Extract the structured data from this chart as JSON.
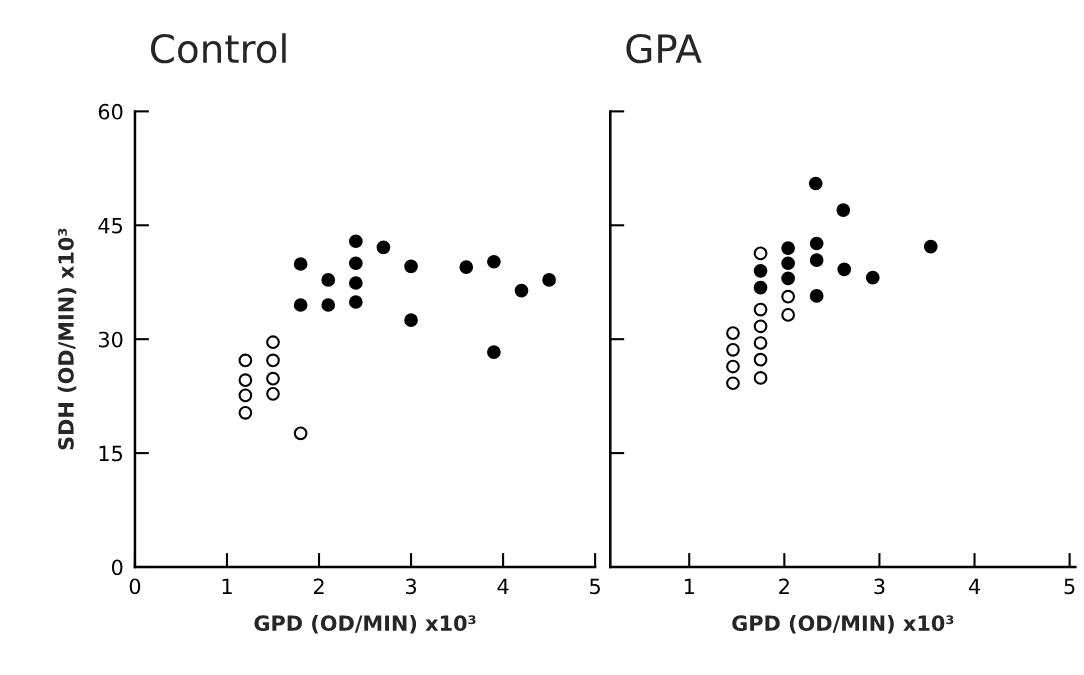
{
  "chart_data": [
    {
      "type": "scatter",
      "title": "Control",
      "xlabel": "GPD (OD/MIN) x10³",
      "ylabel": "SDH (OD/MIN) x10³",
      "xlim": [
        0,
        5
      ],
      "ylim": [
        0,
        60
      ],
      "xticks": [
        0,
        1,
        2,
        3,
        4,
        5
      ],
      "yticks": [
        0,
        15,
        30,
        45,
        60
      ],
      "marker": "circle",
      "grid": false,
      "legend": false,
      "series": [
        {
          "color": "#ffffff",
          "x": [
            1.2,
            1.2,
            1.2,
            1.2,
            1.5,
            1.5,
            1.5,
            1.5,
            1.8
          ],
          "values": [
            27.2,
            24.6,
            22.6,
            20.3,
            29.6,
            27.2,
            24.8,
            22.8,
            17.6
          ]
        },
        {
          "color": "#000000",
          "x": [
            1.8,
            2.1,
            2.1,
            1.8,
            2.4,
            2.4,
            2.4,
            2.4,
            2.7,
            3.0,
            3.0,
            3.6,
            3.9,
            3.9,
            4.2,
            4.5
          ],
          "values": [
            39.9,
            37.8,
            34.5,
            34.5,
            42.9,
            40.0,
            37.4,
            34.9,
            42.1,
            39.6,
            32.5,
            39.5,
            40.2,
            28.3,
            36.4,
            37.8
          ]
        }
      ]
    },
    {
      "type": "scatter",
      "title": "GPA",
      "xlabel": "GPD (OD/MIN) x10³",
      "xlim": [
        0.17,
        5.06
      ],
      "ylim": [
        0,
        60
      ],
      "xticks": [
        1,
        2,
        3,
        4,
        5
      ],
      "yticks": [
        {
          "value": 15,
          "label": null
        },
        {
          "value": 30,
          "label": null
        },
        {
          "value": 45,
          "label": null
        },
        {
          "value": 60,
          "label": null
        }
      ],
      "tick_labels": "x",
      "marker": "circle",
      "grid": false,
      "legend": false,
      "series": [
        {
          "color": "#ffffff",
          "x": [
            1.46,
            1.46,
            1.46,
            1.46,
            1.75,
            1.75,
            1.75,
            1.75,
            1.75,
            1.75,
            2.04,
            2.04
          ],
          "values": [
            30.8,
            28.6,
            26.4,
            24.2,
            41.3,
            33.9,
            31.7,
            29.5,
            27.3,
            24.9,
            35.6,
            33.2
          ]
        },
        {
          "color": "#000000",
          "x": [
            1.75,
            1.75,
            2.04,
            2.04,
            2.04,
            2.33,
            2.34,
            2.34,
            2.34,
            2.62,
            2.63,
            2.93,
            3.54
          ],
          "values": [
            39.0,
            36.8,
            42.0,
            40.0,
            38.0,
            50.5,
            42.6,
            40.4,
            35.7,
            47.0,
            39.2,
            38.1,
            42.2
          ]
        }
      ]
    }
  ]
}
